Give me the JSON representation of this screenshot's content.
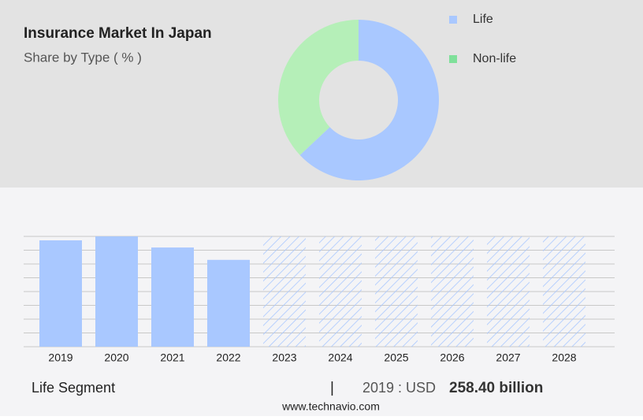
{
  "chart_data": [
    {
      "type": "pie",
      "title": "Insurance Market In Japan",
      "subtitle": "Share by Type ( % )",
      "categories": [
        "Life",
        "Non-life"
      ],
      "values": [
        63,
        37
      ],
      "colors": [
        "#a9c8ff",
        "#b5efb8"
      ],
      "legend_colors": [
        "#a9c8ff",
        "#7fe09a"
      ],
      "donut": true
    },
    {
      "type": "bar",
      "categories": [
        "2019",
        "2020",
        "2021",
        "2022",
        "2023",
        "2024",
        "2025",
        "2026",
        "2027",
        "2028"
      ],
      "values": [
        258.4,
        268,
        241,
        211,
        null,
        null,
        null,
        null,
        null,
        null
      ],
      "color": "#a9c8ff",
      "ylim": [
        0,
        268
      ],
      "grid": true
    }
  ],
  "footer": {
    "segment": "Life Segment",
    "separator": "|",
    "year_label": "2019 : USD",
    "value_text": "258.40 billion",
    "source": "www.technavio.com"
  }
}
